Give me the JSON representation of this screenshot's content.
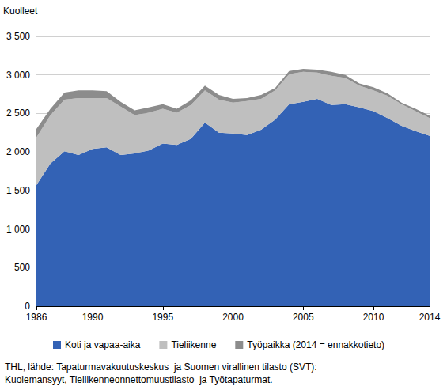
{
  "chart_data": {
    "type": "area",
    "y_label": "Kuolleet",
    "stacked": true,
    "grid": true,
    "legend": "bottom",
    "categories": [
      "1986",
      null,
      null,
      null,
      "1990",
      null,
      null,
      null,
      null,
      "1995",
      null,
      null,
      null,
      null,
      "2000",
      null,
      null,
      null,
      null,
      "2005",
      null,
      null,
      null,
      null,
      "2010",
      null,
      null,
      null,
      "2014"
    ],
    "series": [
      {
        "name": "Koti ja vapaa-aika",
        "color": "#3362b5",
        "values": [
          1570,
          1850,
          2010,
          1960,
          2040,
          2060,
          1960,
          1980,
          2020,
          2110,
          2090,
          2170,
          2380,
          2250,
          2240,
          2220,
          2290,
          2420,
          2620,
          2650,
          2690,
          2610,
          2620,
          2580,
          2530,
          2440,
          2340,
          2270,
          2210
        ]
      },
      {
        "name": "Tieliikenne",
        "color": "#bfbfbf",
        "values": [
          620,
          630,
          670,
          740,
          660,
          640,
          630,
          500,
          490,
          450,
          420,
          440,
          420,
          430,
          400,
          440,
          400,
          380,
          390,
          390,
          340,
          380,
          340,
          280,
          270,
          290,
          280,
          260,
          230
        ]
      },
      {
        "name": "Työpaikka (2014 = ennakkotieto)",
        "color": "#8c8c8c",
        "values": [
          110,
          80,
          90,
          100,
          100,
          90,
          60,
          60,
          70,
          60,
          50,
          60,
          60,
          60,
          50,
          40,
          50,
          30,
          40,
          40,
          40,
          50,
          40,
          30,
          40,
          30,
          20,
          30,
          30
        ]
      }
    ],
    "ylim": [
      0,
      3500
    ],
    "yticks": [
      0,
      500,
      {
        "value": 1000,
        "label": "1 000"
      },
      {
        "value": 1500,
        "label": "1 500"
      },
      {
        "value": 2000,
        "label": "2 000"
      },
      {
        "value": 2500,
        "label": "2 500"
      },
      {
        "value": 3000,
        "label": "3 000"
      },
      {
        "value": 3500,
        "label": "3 500"
      }
    ],
    "annotations": [
      "THL, lähde: Tapaturmavakuutuskeskus  ja Suomen virallinen tilasto (SVT):",
      "Kuolemansyyt, Tieliikenneonnettomuustilasto  ja Työtapaturmat."
    ]
  }
}
